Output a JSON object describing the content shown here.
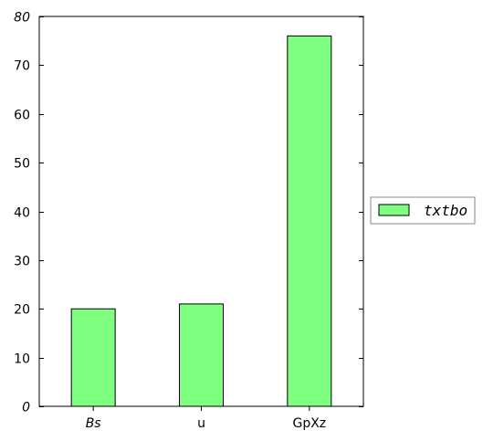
{
  "chart_data": {
    "type": "bar",
    "categories": [
      "Bs",
      "u",
      "GpXz"
    ],
    "category_italic": [
      true,
      false,
      false
    ],
    "series": [
      {
        "name": "txtbo",
        "values": [
          20,
          21,
          76
        ],
        "color": "#7fff7f"
      }
    ],
    "ylim": [
      0,
      80
    ],
    "yticks": [
      0,
      10,
      20,
      30,
      40,
      50,
      60,
      70,
      80
    ],
    "ytick_labels": [
      "0",
      "10",
      "20",
      "30",
      "40",
      "50",
      "60",
      "70",
      "80"
    ],
    "ytick_italic": [
      true,
      false,
      false,
      false,
      false,
      false,
      false,
      false,
      true
    ],
    "title": "",
    "xlabel": "",
    "ylabel": "",
    "grid": false,
    "legend": {
      "position": "right",
      "border": true
    }
  }
}
